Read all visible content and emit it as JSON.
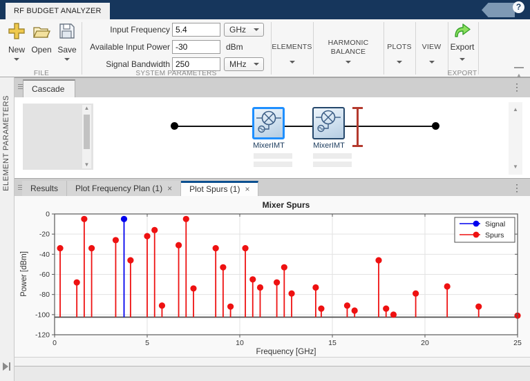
{
  "window": {
    "app_tab": "RF BUDGET ANALYZER",
    "help_glyph": "?"
  },
  "ui": {
    "close_glyph": "×"
  },
  "ribbon": {
    "file": {
      "section_label": "FILE",
      "new_label": "New",
      "open_label": "Open",
      "save_label": "Save"
    },
    "system_parameters": {
      "section_label": "SYSTEM PARAMETERS",
      "fields": [
        {
          "label": "Input Frequency",
          "value": "5.4",
          "unit": "GHz",
          "unit_dropdown": true
        },
        {
          "label": "Available Input Power",
          "value": "-30",
          "unit": "dBm",
          "unit_dropdown": false
        },
        {
          "label": "Signal Bandwidth",
          "value": "250",
          "unit": "MHz",
          "unit_dropdown": true
        }
      ]
    },
    "elements": {
      "label": "ELEMENTS"
    },
    "harmonic_balance": {
      "label_line1": "HARMONIC",
      "label_line2": "BALANCE"
    },
    "plots": {
      "label": "PLOTS"
    },
    "view": {
      "label": "VIEW"
    },
    "export": {
      "button_label": "Export",
      "section_label": "EXPORT"
    }
  },
  "left_panel": {
    "label": "ELEMENT PARAMETERS"
  },
  "canvas": {
    "tab": "Cascade",
    "mixers": [
      {
        "label": "MixerIMT",
        "selected": true
      },
      {
        "label": "MixerIMT",
        "selected": false
      }
    ]
  },
  "result_tabs": [
    {
      "label": "Results",
      "closable": false,
      "active": false
    },
    {
      "label": "Plot Frequency Plan (1)",
      "closable": true,
      "active": false
    },
    {
      "label": "Plot Spurs (1)",
      "closable": true,
      "active": true
    }
  ],
  "chart_data": {
    "type": "scatter",
    "style": "stem",
    "title": "Mixer Spurs",
    "xlabel": "Frequency [GHz]",
    "ylabel": "Power [dBm]",
    "xlim": [
      0,
      25
    ],
    "ylim": [
      -120,
      0
    ],
    "xticks": [
      0,
      5,
      10,
      15,
      20,
      25
    ],
    "yticks": [
      0,
      -20,
      -40,
      -60,
      -80,
      -100,
      -120
    ],
    "baseline": -102.5,
    "grid": true,
    "legend_position": "northeast",
    "series": [
      {
        "name": "Signal",
        "color": "#0000ee",
        "points": [
          [
            3.75,
            -5
          ]
        ]
      },
      {
        "name": "Spurs",
        "color": "#ee1111",
        "points": [
          [
            0.3,
            -34
          ],
          [
            1.2,
            -68
          ],
          [
            1.6,
            -5
          ],
          [
            2.0,
            -34
          ],
          [
            3.3,
            -26
          ],
          [
            4.1,
            -46
          ],
          [
            5.0,
            -22
          ],
          [
            5.4,
            -16
          ],
          [
            5.8,
            -91
          ],
          [
            6.7,
            -31
          ],
          [
            7.1,
            -5
          ],
          [
            7.5,
            -74
          ],
          [
            8.7,
            -34
          ],
          [
            9.1,
            -53
          ],
          [
            9.5,
            -92
          ],
          [
            10.3,
            -34
          ],
          [
            10.7,
            -65
          ],
          [
            11.1,
            -73
          ],
          [
            12.0,
            -68
          ],
          [
            12.4,
            -53
          ],
          [
            12.8,
            -79
          ],
          [
            14.1,
            -73
          ],
          [
            14.4,
            -94
          ],
          [
            15.8,
            -91
          ],
          [
            16.2,
            -96
          ],
          [
            17.5,
            -46
          ],
          [
            17.9,
            -94
          ],
          [
            18.3,
            -100
          ],
          [
            19.5,
            -79
          ],
          [
            21.2,
            -72
          ],
          [
            22.9,
            -92
          ],
          [
            25.0,
            -101
          ]
        ]
      }
    ]
  }
}
